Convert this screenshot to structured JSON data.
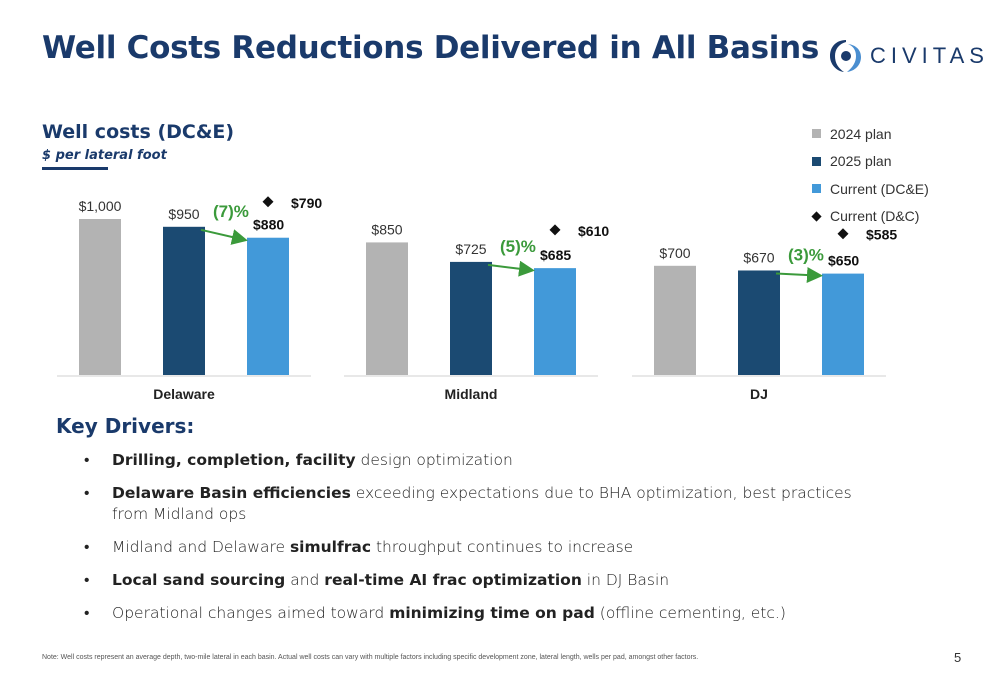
{
  "slide": {
    "title": "Well Costs Reductions Delivered in All Basins",
    "logo_text": "CIVITAS",
    "subtitle": "Well costs (DC&E)",
    "units": "$ per lateral foot",
    "page_number": "5",
    "note": "Note:  Well costs represent an average depth, two-mile lateral in each basin.  Actual well costs can vary with multiple factors including specific development zone, lateral length, wells per pad, amongst other factors."
  },
  "colors": {
    "plan_2024": "#b3b3b3",
    "plan_2025": "#1b4a72",
    "current_dce": "#4299d9",
    "current_dc": "#111111",
    "arrow": "#3b9a3b",
    "title": "#1a3a6b"
  },
  "chart_data": {
    "type": "bar",
    "categories": [
      "Delaware",
      "Midland",
      "DJ"
    ],
    "series": [
      {
        "name": "2024 plan",
        "values": [
          1000,
          850,
          700
        ],
        "labels": [
          "$1,000",
          "$850",
          "$700"
        ]
      },
      {
        "name": "2025 plan",
        "values": [
          950,
          725,
          670
        ],
        "labels": [
          "$950",
          "$725",
          "$670"
        ]
      },
      {
        "name": "Current (DC&E)",
        "values": [
          880,
          685,
          650
        ],
        "labels": [
          "$880",
          "$685",
          "$650"
        ]
      },
      {
        "name": "Current (D&C)",
        "type": "marker",
        "values": [
          790,
          610,
          585
        ],
        "labels": [
          "$790",
          "$610",
          "$585"
        ]
      }
    ],
    "annotations": [
      "(7)%",
      "(5)%",
      "(3)%"
    ],
    "legend_position": "top-right",
    "grid": false
  },
  "drivers": {
    "title": "Key Drivers:",
    "items": [
      {
        "bold1": "Drilling, completion, facility",
        "text1": " design optimization",
        "bold2": "",
        "text2": ""
      },
      {
        "bold1": "Delaware Basin efficiencies",
        "text1": " exceeding expectations due to BHA optimization, best practices from Midland ops",
        "bold2": "",
        "text2": ""
      },
      {
        "bold1": "",
        "text1": "Midland and Delaware ",
        "bold2": "simulfrac",
        "text2": " throughput continues to increase"
      },
      {
        "bold1": "Local sand sourcing",
        "text1": " and ",
        "bold2": "real-time AI frac optimization",
        "text2": " in DJ Basin"
      },
      {
        "bold1": "",
        "text1": "Operational changes aimed toward ",
        "bold2": "minimizing time on pad",
        "text2": " (offline cementing, etc.)"
      }
    ]
  }
}
